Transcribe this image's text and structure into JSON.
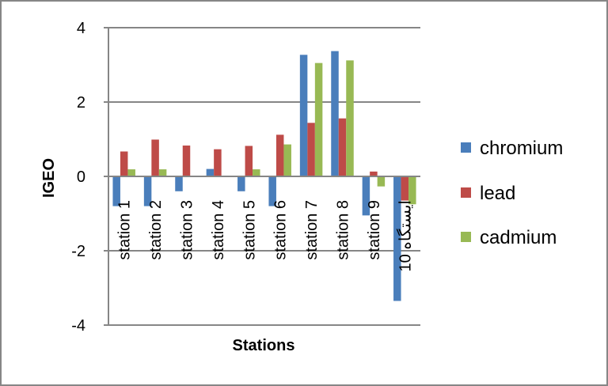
{
  "chart_data": {
    "type": "bar",
    "title": "",
    "xlabel": "Stations",
    "ylabel": "IGEO",
    "ylim": [
      -4,
      4
    ],
    "yticks": [
      4,
      2,
      0,
      -2,
      -4
    ],
    "grid": true,
    "legend_position": "right",
    "categories": [
      "station 1",
      "station 2",
      "station 3",
      "station 4",
      "station 5",
      "station 6",
      "station 7",
      "station 8",
      "station 9",
      "ایستگاه 10"
    ],
    "series": [
      {
        "name": "chromium",
        "color": "#4a7ebb",
        "values": [
          -0.8,
          -0.8,
          -0.4,
          0.2,
          -0.4,
          -0.8,
          3.27,
          3.37,
          -1.05,
          -3.35
        ]
      },
      {
        "name": "lead",
        "color": "#be4b48",
        "values": [
          0.67,
          0.99,
          0.83,
          0.73,
          0.82,
          1.12,
          1.44,
          1.56,
          0.13,
          -0.65
        ]
      },
      {
        "name": "cadmium",
        "color": "#98b954",
        "values": [
          0.19,
          0.19,
          0.0,
          0.0,
          0.19,
          0.86,
          3.05,
          3.12,
          -0.27,
          -0.75
        ]
      }
    ]
  }
}
